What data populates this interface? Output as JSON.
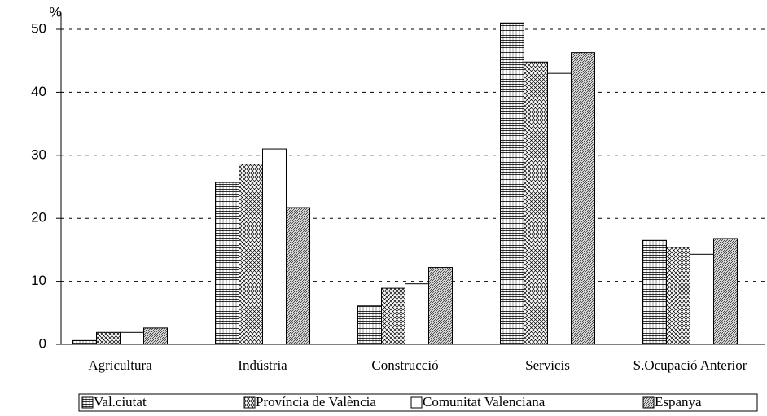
{
  "chart_data": {
    "type": "bar",
    "y_label": "%",
    "categories": [
      "Agricultura",
      "Indústria",
      "Construcció",
      "Servicis",
      "S.Ocupació Anterior"
    ],
    "series": [
      {
        "name": "Val.ciutat",
        "color": "#000000",
        "pattern": "horizontal",
        "values": [
          0.6,
          25.7,
          6.1,
          51.0,
          16.5
        ]
      },
      {
        "name": "Província de València",
        "color": "#000000",
        "pattern": "crosshatch",
        "values": [
          1.9,
          28.6,
          8.9,
          44.8,
          15.4
        ]
      },
      {
        "name": "Comunitat Valenciana",
        "color": "#000000",
        "pattern": "none",
        "values": [
          1.9,
          31.0,
          9.6,
          43.0,
          14.3
        ]
      },
      {
        "name": "Espanya",
        "color": "#000000",
        "pattern": "diagonal",
        "values": [
          2.6,
          21.7,
          12.2,
          46.3,
          16.8
        ]
      }
    ],
    "ylim": [
      0,
      52
    ],
    "yticks": [
      0,
      10,
      20,
      30,
      40,
      50
    ],
    "grid": true,
    "legend": "bottom"
  }
}
